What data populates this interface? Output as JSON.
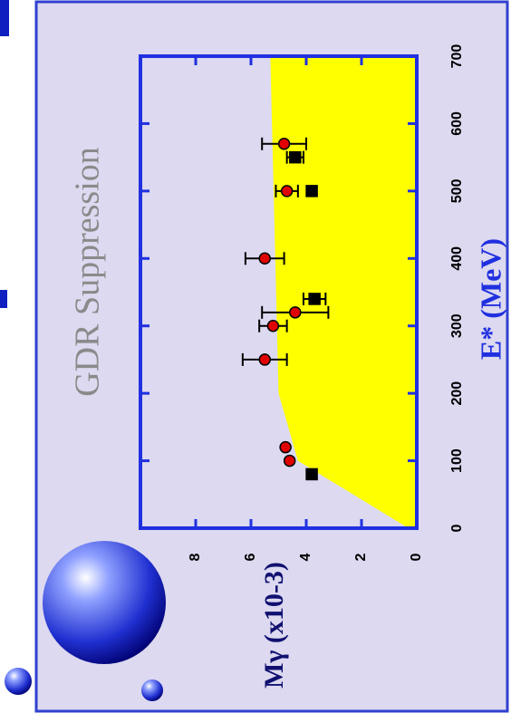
{
  "chart_data": {
    "type": "scatter",
    "title": "GDR Suppression",
    "x_label": "E* (MeV)",
    "y_label": "Mγ (x10-3)",
    "xlim": [
      0,
      700
    ],
    "xticks": [
      0,
      100,
      200,
      300,
      400,
      500,
      600,
      700
    ],
    "ylim": [
      0,
      10
    ],
    "yticks": [
      0,
      2,
      4,
      6,
      8
    ],
    "band": {
      "color": "#ffff00",
      "x": [
        0,
        100,
        200,
        700
      ],
      "values": [
        0.3,
        4.3,
        5.0,
        5.3
      ]
    },
    "series": [
      {
        "name": "circles",
        "color": "#e00000",
        "marker": "circle",
        "x": [
          100,
          120,
          250,
          300,
          320,
          400,
          500,
          570
        ],
        "values": [
          4.6,
          4.75,
          5.5,
          5.2,
          4.4,
          5.5,
          4.7,
          4.8
        ],
        "errors": [
          null,
          null,
          0.8,
          0.5,
          1.2,
          0.7,
          0.4,
          0.8
        ]
      },
      {
        "name": "squares",
        "color": "#000000",
        "marker": "square",
        "x": [
          80,
          340,
          500,
          550
        ],
        "values": [
          3.8,
          3.7,
          3.8,
          4.4
        ],
        "errors": [
          null,
          0.4,
          null,
          0.3
        ]
      }
    ]
  }
}
